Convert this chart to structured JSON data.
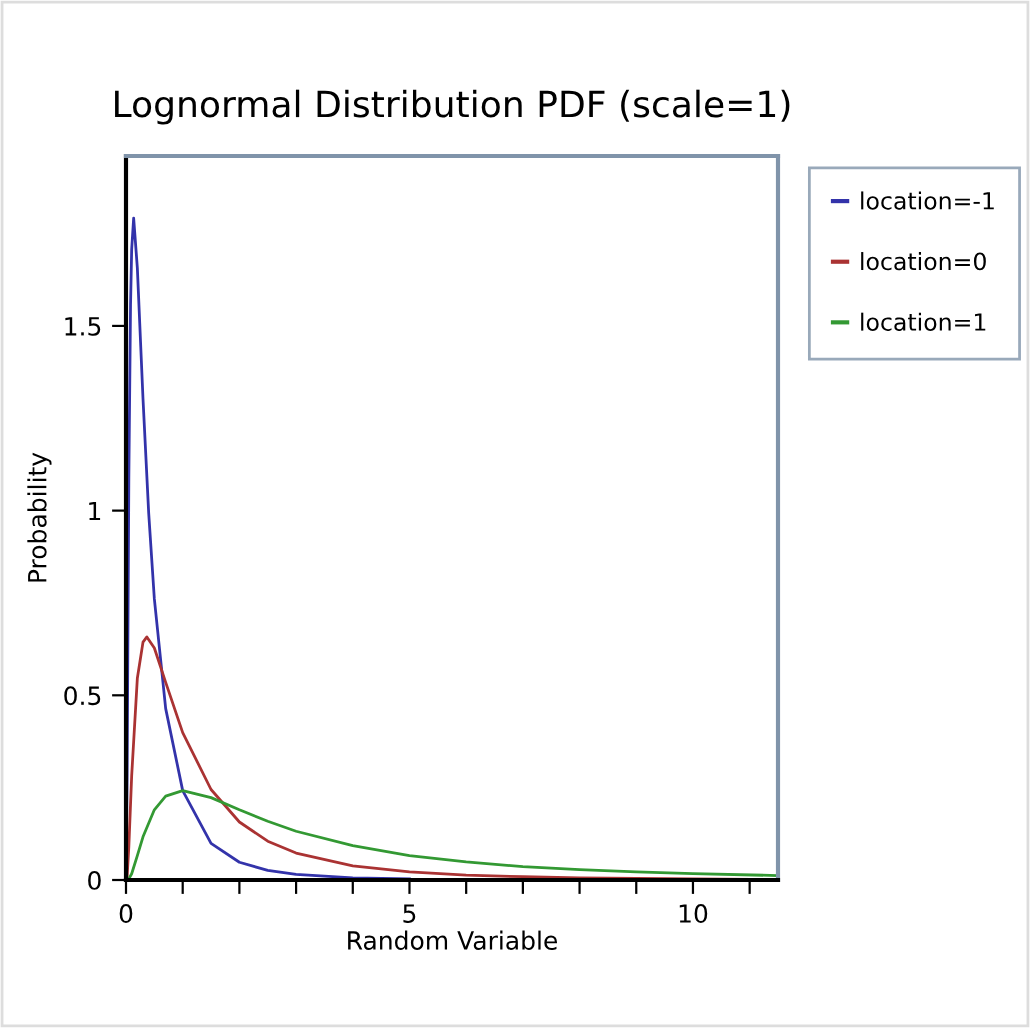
{
  "chart_data": {
    "type": "line",
    "title": "Lognormal Distribution PDF (scale=1)",
    "xlabel": "Random Variable",
    "ylabel": "Probability",
    "xlim": [
      0,
      11.5
    ],
    "ylim": [
      0,
      1.96
    ],
    "xticks": [
      0,
      {
        "value": 1,
        "label": null
      },
      {
        "value": 2,
        "label": null
      },
      {
        "value": 3,
        "label": null
      },
      {
        "value": 4,
        "label": null
      },
      5,
      {
        "value": 6,
        "label": null
      },
      {
        "value": 7,
        "label": null
      },
      {
        "value": 8,
        "label": null
      },
      {
        "value": 9,
        "label": null
      },
      10,
      {
        "value": 11,
        "label": null
      }
    ],
    "yticks": [
      0,
      0.5,
      1,
      1.5
    ],
    "grid": false,
    "legend": "right",
    "marker": "none",
    "line_style": "solid",
    "series": [
      {
        "name": "location=-1",
        "color": "#3333aa",
        "x": [
          0,
          0.02,
          0.05,
          0.08,
          0.1,
          0.135,
          0.2,
          0.3,
          0.4,
          0.5,
          0.7,
          1,
          1.5,
          2,
          2.5,
          3,
          4,
          5
        ],
        "values": [
          0,
          0.288,
          1.088,
          1.557,
          1.707,
          1.792,
          1.657,
          1.302,
          0.994,
          0.761,
          0.464,
          0.242,
          0.099,
          0.048,
          0.026,
          0.015,
          0.006,
          0.003
        ]
      },
      {
        "name": "location=0",
        "color": "#aa3333",
        "x": [
          0,
          0.02,
          0.05,
          0.1,
          0.2,
          0.3,
          0.368,
          0.5,
          0.7,
          1,
          1.5,
          2,
          2.5,
          3,
          4,
          5,
          6,
          7,
          8,
          10,
          11
        ],
        "values": [
          0,
          0.01,
          0.09,
          0.282,
          0.546,
          0.644,
          0.658,
          0.628,
          0.535,
          0.399,
          0.245,
          0.157,
          0.105,
          0.073,
          0.038,
          0.022,
          0.013,
          0.009,
          0.006,
          0.003,
          0.002
        ]
      },
      {
        "name": "location=1",
        "color": "#339933",
        "x": [
          0,
          0.05,
          0.1,
          0.2,
          0.3,
          0.5,
          0.7,
          1,
          1.5,
          2,
          2.5,
          3,
          4,
          5,
          6,
          7,
          8,
          9,
          10,
          11.5
        ],
        "values": [
          0,
          0.003,
          0.017,
          0.066,
          0.117,
          0.19,
          0.227,
          0.242,
          0.223,
          0.19,
          0.159,
          0.132,
          0.093,
          0.066,
          0.049,
          0.036,
          0.028,
          0.022,
          0.017,
          0.012
        ]
      }
    ]
  }
}
